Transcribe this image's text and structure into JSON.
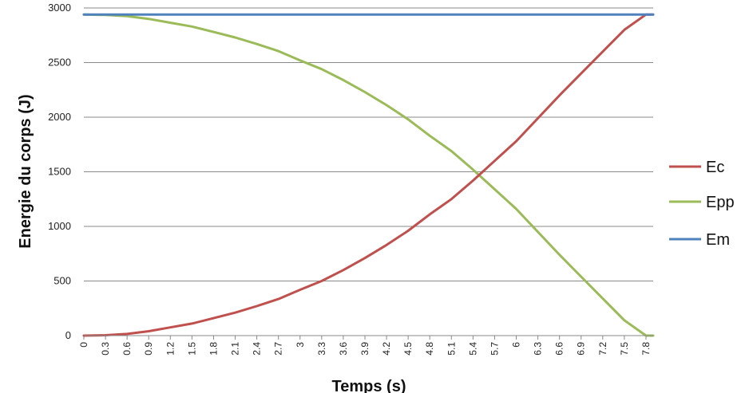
{
  "chart_data": {
    "type": "line",
    "title": "",
    "xlabel": "Temps (s)",
    "ylabel": "Energie du corps (J)",
    "ylim": [
      0,
      3000
    ],
    "yticks": [
      0,
      500,
      1000,
      1500,
      2000,
      2500,
      3000
    ],
    "xticks": [
      "0",
      "0.3",
      "0.6",
      "0.9",
      "1.2",
      "1.5",
      "1.8",
      "2.1",
      "2.4",
      "2.7",
      "3",
      "3.3",
      "3.6",
      "3.9",
      "4.2",
      "4.5",
      "4.8",
      "5.1",
      "5.4",
      "5.7",
      "6",
      "6.3",
      "6.6",
      "6.9",
      "7.2",
      "7.5",
      "7.8"
    ],
    "xlim": [
      0,
      7.9
    ],
    "grid": "horizontal",
    "legend_position": "right",
    "series": [
      {
        "name": "Ec",
        "color": "#c0504d",
        "x": [
          0,
          0.3,
          0.6,
          0.9,
          1.2,
          1.5,
          1.8,
          2.1,
          2.4,
          2.7,
          3,
          3.3,
          3.6,
          3.9,
          4.2,
          4.5,
          4.8,
          5.1,
          5.4,
          5.7,
          6,
          6.3,
          6.6,
          6.9,
          7.2,
          7.5,
          7.8,
          7.9
        ],
        "values": [
          0,
          4,
          15,
          40,
          75,
          110,
          160,
          210,
          270,
          335,
          420,
          500,
          600,
          710,
          830,
          960,
          1110,
          1250,
          1420,
          1600,
          1780,
          1990,
          2200,
          2400,
          2600,
          2800,
          2940,
          2940
        ]
      },
      {
        "name": "Epp",
        "color": "#9bbb59",
        "x": [
          0,
          0.3,
          0.6,
          0.9,
          1.2,
          1.5,
          1.8,
          2.1,
          2.4,
          2.7,
          3,
          3.3,
          3.6,
          3.9,
          4.2,
          4.5,
          4.8,
          5.1,
          5.4,
          5.7,
          6,
          6.3,
          6.6,
          6.9,
          7.2,
          7.5,
          7.8,
          7.9
        ],
        "values": [
          2940,
          2936,
          2925,
          2900,
          2865,
          2830,
          2780,
          2730,
          2670,
          2605,
          2520,
          2440,
          2340,
          2230,
          2110,
          1980,
          1830,
          1690,
          1520,
          1340,
          1160,
          950,
          740,
          540,
          340,
          140,
          0,
          0
        ]
      },
      {
        "name": "Em",
        "color": "#4f81bd",
        "x": [
          0,
          7.9
        ],
        "values": [
          2940,
          2940
        ]
      }
    ]
  }
}
